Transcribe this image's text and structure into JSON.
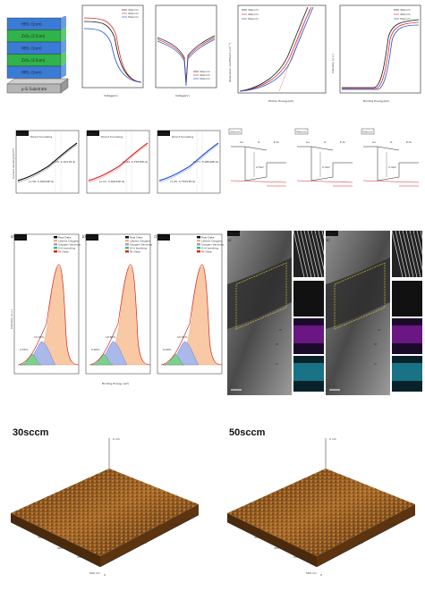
{
  "stack": {
    "layers": [
      {
        "label": "HfO₂ (1nm)",
        "color": "#3a7bd5"
      },
      {
        "label": "ZrO₂ (3.5nm)",
        "color": "#2fb34a"
      },
      {
        "label": "HfO₂ (1nm)",
        "color": "#3a7bd5"
      },
      {
        "label": "ZrO₂ (3.5nm)",
        "color": "#2fb34a"
      },
      {
        "label": "HfO₂ (1nm)",
        "color": "#3a7bd5"
      }
    ],
    "substrate": "p-Si Substrate"
  },
  "legend_flow": [
    "30sccm",
    "40sccm",
    "50sccm"
  ],
  "series_colors": [
    "#111111",
    "#d62728",
    "#1f4fd6"
  ],
  "cv_xlabel": "Voltage(V)",
  "iv_xlabel": "Voltage(V)",
  "abs_ylabel": "Absorption Coefficient (cm⁻¹)",
  "abs_xlabel": "Photon Energy(eV)",
  "xps_edge_ylabel": "Intensity (a.u.)",
  "xps_edge_xlabel": "Binding Energy(eV)",
  "fn_panels": [
    {
      "tag": "30sccm",
      "fit1": "(1.70, 1.00178.4)",
      "fit2": "(1.38, 4.36094E-9)",
      "label": "Direct tunneling"
    },
    {
      "tag": "40sccm",
      "fit1": "(1.94, 4.75535E-9)",
      "fit2": "(1.21, 4.46032E-9)",
      "label": "Direct tunneling"
    },
    {
      "tag": "50sccm",
      "fit1": "(1.77, 5.08546E-9)",
      "fit2": "(1.30, 4.75553E-9)",
      "label": "Direct tunneling"
    }
  ],
  "fn_ylabel": "Current density(A/cm²)",
  "band_panels": [
    {
      "tag": "30sccm",
      "au": "Au",
      "o": "O",
      "psi": "P-Si",
      "gap": "2.5eV"
    },
    {
      "tag": "40sccm",
      "au": "Au",
      "o": "O",
      "psi": "P-Si",
      "gap": "2.3eV"
    },
    {
      "tag": "50sccm",
      "au": "Au",
      "o": "O",
      "psi": "P-Si",
      "gap": "2.3eV"
    }
  ],
  "o1s_panels": [
    {
      "tag": "30sccm",
      "pct1": "13.03%",
      "pct2": "2.55%"
    },
    {
      "tag": "40sccm",
      "pct1": "10.89%",
      "pct2": "5.82%"
    },
    {
      "tag": "50sccm",
      "pct1": "10.55%",
      "pct2": "6.09%"
    }
  ],
  "o1s_legend": [
    "Raw Data",
    "Lattice Oxygen",
    "Oxygen Vacancy",
    "O-H bonding",
    "Fit Data"
  ],
  "o1s_xlabel": "Binding Energy (eV)",
  "o1s_ylabel": "Intensity (a.u.)",
  "o1s_panel_labels": [
    "(a)",
    "(b)",
    "(c)"
  ],
  "tem_panels": [
    {
      "tag": "30sccm",
      "letter": "(a)",
      "fft": "(a) 0.296",
      "thick": "~10nm",
      "scale": "5 nm",
      "lbl_hf": "Hf",
      "lbl_zr": "Zr",
      "lbl_si": "Si"
    },
    {
      "tag": "50sccm",
      "letter": "(b)",
      "fft": "(a) 0.300",
      "thick": "~10nm",
      "scale": "5 nm",
      "lbl_hf": "Hf",
      "lbl_zr": "Zr",
      "lbl_si": "Si"
    }
  ],
  "afm": [
    {
      "title": "30sccm",
      "z": "0 nm",
      "axis_a": "500 nm",
      "axis_b": "400",
      "axis_c": "300",
      "axis_d": "200",
      "axis_e": "100",
      "axis_0": "0"
    },
    {
      "title": "50sccm",
      "z": "0 nm",
      "axis_a": "500 nm",
      "axis_b": "400",
      "axis_c": "300",
      "axis_d": "200",
      "axis_e": "100",
      "axis_0": "0"
    }
  ]
}
